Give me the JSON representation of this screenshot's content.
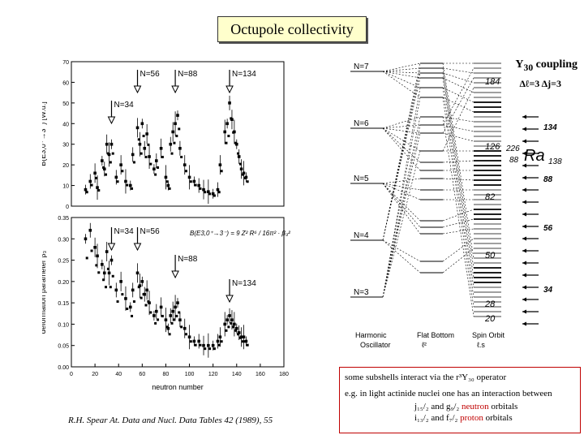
{
  "title": "Octupole collectivity",
  "coupling": {
    "label": "Y",
    "sub": "30",
    "suffix": " coupling",
    "delta": "Δℓ=3 Δj=3"
  },
  "caption": "R.H. Spear At. Data and Nucl. Data Tables 42 (1989), 55",
  "note": {
    "line1": "some subshells interact via the r³Y₃₀ operator",
    "line2": "e.g. in light actinide nuclei one has an interaction between",
    "line3a": "j₁₅/₂ and g₉/₂ ",
    "line3b": "neutron",
    "line3c": " orbitals",
    "line4a": "i₁₃/₂ and f₇/₂  ",
    "line4b": "proton",
    "line4c": "  orbitals"
  },
  "top_plot": {
    "ylabel": "B(E3,0⁺→3⁻) [W.u.]",
    "yticks": [
      "0",
      "10",
      "20",
      "30",
      "40",
      "50",
      "60",
      "70"
    ],
    "markers": [
      "N=34",
      "N=56",
      "N=88",
      "N=134"
    ]
  },
  "bottom_plot": {
    "ylabel": "deformation parameter β₃",
    "xlabel": "neutron number",
    "yticks": [
      "0.00",
      "0.05",
      "0.10",
      "0.15",
      "0.20",
      "0.25",
      "0.30",
      "0.35"
    ],
    "xticks": [
      "0",
      "20",
      "40",
      "60",
      "80",
      "100",
      "120",
      "140",
      "160",
      "180"
    ],
    "markers": [
      "N=34",
      "N=56",
      "N=88",
      "N=134"
    ],
    "formula": "B(E3,0⁺→3⁻) = 9 Z² R⁶ / 16π² · β₃²"
  },
  "levels": {
    "osc": [
      "N=7",
      "N=6",
      "N=5",
      "N=4",
      "N=3"
    ],
    "magic_italic": [
      "184",
      "126",
      "82",
      "50",
      "28",
      "20"
    ],
    "magic_right": [
      "134",
      "88",
      "56",
      "34"
    ],
    "nucleus": {
      "mass": "226",
      "z": "88",
      "symbol": "Ra",
      "n": "138"
    },
    "columns": [
      "Harmonic Oscillator",
      "Flat Bottom ℓ²",
      "Spin Orbit ℓ.s"
    ]
  },
  "chart_data": [
    {
      "type": "scatter",
      "title": "",
      "xlabel": "neutron number",
      "ylabel": "B(E3,0+→3-) [W.u.]",
      "ylim": [
        0,
        70
      ],
      "xlim": [
        0,
        180
      ],
      "series": [
        {
          "name": "B(E3)",
          "x": [
            12,
            16,
            20,
            22,
            26,
            28,
            30,
            32,
            34,
            38,
            42,
            46,
            50,
            52,
            56,
            58,
            60,
            62,
            64,
            66,
            70,
            72,
            76,
            80,
            82,
            84,
            86,
            88,
            90,
            92,
            96,
            100,
            104,
            108,
            112,
            116,
            120,
            124,
            126,
            130,
            132,
            134,
            136,
            138,
            140,
            142,
            144,
            146,
            148
          ],
          "y": [
            8,
            12,
            16,
            9,
            22,
            18,
            30,
            25,
            30,
            14,
            20,
            12,
            10,
            25,
            38,
            30,
            40,
            28,
            35,
            24,
            18,
            22,
            28,
            14,
            10,
            30,
            36,
            40,
            44,
            28,
            20,
            14,
            12,
            10,
            8,
            7,
            6,
            8,
            20,
            36,
            40,
            50,
            42,
            36,
            30,
            24,
            18,
            16,
            14
          ]
        }
      ]
    },
    {
      "type": "scatter",
      "title": "",
      "xlabel": "neutron number",
      "ylabel": "deformation parameter β3",
      "ylim": [
        0,
        0.35
      ],
      "xlim": [
        0,
        180
      ],
      "series": [
        {
          "name": "beta3",
          "x": [
            12,
            16,
            20,
            22,
            26,
            28,
            30,
            32,
            34,
            38,
            42,
            46,
            50,
            52,
            56,
            58,
            60,
            62,
            64,
            66,
            70,
            72,
            76,
            80,
            82,
            84,
            86,
            88,
            90,
            92,
            96,
            100,
            104,
            108,
            112,
            116,
            120,
            124,
            126,
            130,
            132,
            134,
            136,
            138,
            140,
            142,
            144,
            146,
            148
          ],
          "y": [
            0.3,
            0.32,
            0.28,
            0.26,
            0.24,
            0.22,
            0.27,
            0.22,
            0.25,
            0.18,
            0.2,
            0.16,
            0.14,
            0.18,
            0.22,
            0.19,
            0.2,
            0.17,
            0.18,
            0.15,
            0.12,
            0.13,
            0.14,
            0.11,
            0.09,
            0.12,
            0.13,
            0.14,
            0.15,
            0.11,
            0.09,
            0.07,
            0.06,
            0.06,
            0.05,
            0.05,
            0.05,
            0.06,
            0.07,
            0.1,
            0.11,
            0.12,
            0.11,
            0.1,
            0.09,
            0.08,
            0.07,
            0.07,
            0.06
          ]
        }
      ]
    }
  ]
}
